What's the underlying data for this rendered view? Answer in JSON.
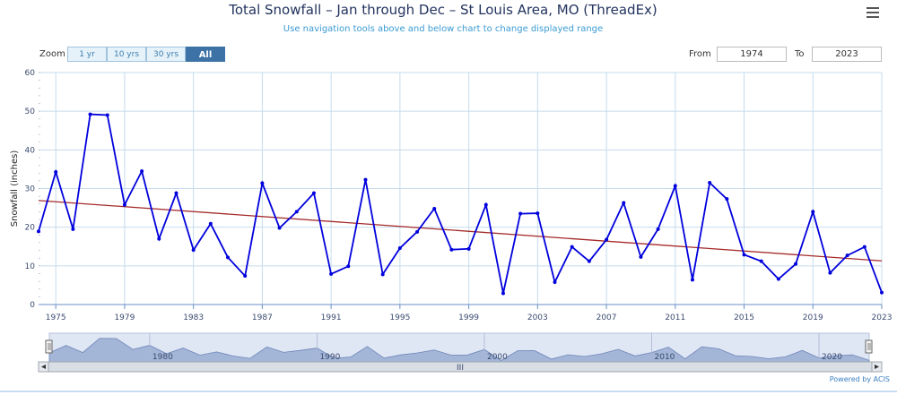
{
  "header": {
    "title": "Total Snowfall – Jan through Dec – St Louis Area, MO (ThreadEx)",
    "subtitle": "Use navigation tools above and below chart to change displayed range"
  },
  "zoom": {
    "label": "Zoom",
    "buttons": [
      "1 yr",
      "10 yrs",
      "30 yrs",
      "All"
    ],
    "active": "All"
  },
  "range": {
    "from_label": "From",
    "from_value": "1974",
    "to_label": "To",
    "to_value": "2023"
  },
  "credit": "Powered by ACIS",
  "navigator": {
    "tick_labels": [
      "1980",
      "1990",
      "2000",
      "2010",
      "2020"
    ],
    "scroll_grip": "III"
  },
  "colors": {
    "series": "#0000dd",
    "trend": "#a52a2a",
    "grid": "#c5dced",
    "navigator_fill": "#8fa6cf"
  },
  "chart_data": {
    "type": "line",
    "title": "Total Snowfall – Jan through Dec – St Louis Area, MO (ThreadEx)",
    "ylabel": "Snowfall (inches)",
    "xlabel": "",
    "ylim": [
      0,
      60
    ],
    "xlim": [
      1974,
      2023
    ],
    "yticks": [
      0,
      10,
      20,
      30,
      40,
      50,
      60
    ],
    "xticks": [
      1975,
      1979,
      1983,
      1987,
      1991,
      1995,
      1999,
      2003,
      2007,
      2011,
      2015,
      2019,
      2023
    ],
    "grid": true,
    "series": [
      {
        "x": [
          1974,
          1975,
          1976,
          1977,
          1978,
          1979,
          1980,
          1981,
          1982,
          1983,
          1984,
          1985,
          1986,
          1987,
          1988,
          1989,
          1990,
          1991,
          1992,
          1993,
          1994,
          1995,
          1996,
          1997,
          1998,
          1999,
          2000,
          2001,
          2002,
          2003,
          2004,
          2005,
          2006,
          2007,
          2008,
          2009,
          2010,
          2011,
          2012,
          2013,
          2014,
          2015,
          2016,
          2017,
          2018,
          2019,
          2020,
          2021,
          2022,
          2023
        ],
        "values": [
          18.9,
          34.3,
          19.5,
          49.2,
          49.0,
          25.8,
          34.5,
          17.0,
          28.8,
          14.1,
          20.9,
          12.2,
          7.4,
          31.4,
          19.8,
          24.0,
          28.8,
          7.9,
          9.9,
          32.3,
          7.8,
          14.6,
          18.8,
          24.8,
          14.2,
          14.4,
          25.8,
          2.9,
          23.5,
          23.6,
          5.8,
          14.9,
          11.2,
          16.8,
          26.3,
          12.3,
          19.5,
          30.7,
          6.4,
          31.5,
          27.3,
          12.9,
          11.2,
          6.6,
          10.5,
          24.0,
          8.2,
          12.7,
          14.9,
          3.1
        ]
      },
      {
        "x": [
          1974,
          2023
        ],
        "values": [
          26.9,
          11.3
        ]
      }
    ]
  }
}
